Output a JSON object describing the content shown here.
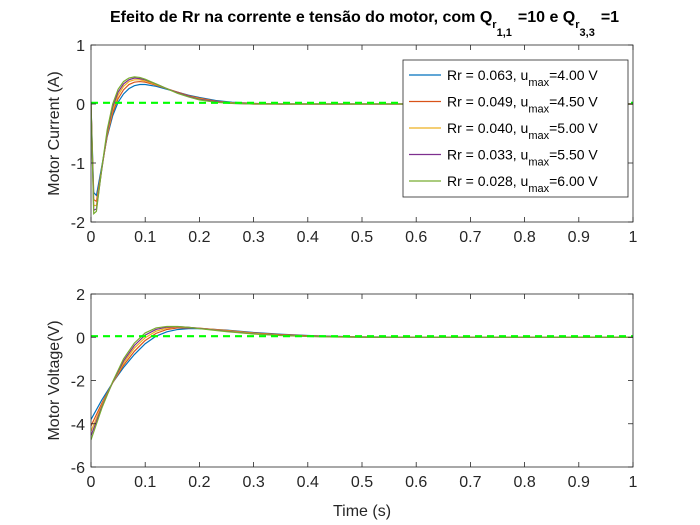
{
  "title": {
    "main": "Efeito de Rr na corrente e tensão do motor, com Q",
    "sub1": "r",
    "subsub1": "1,1",
    "mid": "=10 e Q",
    "sub2": "r",
    "subsub2": "3,3",
    "end": "=1"
  },
  "chart_data": [
    {
      "type": "line",
      "panel": "top",
      "xlabel": "",
      "ylabel": "Motor Current (A)",
      "xlim": [
        0,
        1
      ],
      "ylim": [
        -2,
        1
      ],
      "xticks": [
        "0",
        "0.1",
        "0.2",
        "0.3",
        "0.4",
        "0.5",
        "0.6",
        "0.7",
        "0.8",
        "0.9",
        "1"
      ],
      "yticks": [
        "-2",
        "-1",
        "0",
        "1"
      ],
      "reference_line": {
        "y": 0.02,
        "color": "#00ff00",
        "style": "dashed"
      },
      "legend": {
        "placement": "top-right",
        "entries": [
          {
            "rr": "Rr = 0.063, u",
            "sub": "max",
            "val": "=4.00 V",
            "color": "#0072bd"
          },
          {
            "rr": "Rr = 0.049, u",
            "sub": "max",
            "val": "=4.50 V",
            "color": "#d95319"
          },
          {
            "rr": "Rr = 0.040, u",
            "sub": "max",
            "val": "=5.00 V",
            "color": "#edb120"
          },
          {
            "rr": "Rr = 0.033, u",
            "sub": "max",
            "val": "=5.50 V",
            "color": "#7e2f8e"
          },
          {
            "rr": "Rr = 0.028, u",
            "sub": "max",
            "val": "=6.00 V",
            "color": "#77ac30"
          }
        ]
      },
      "series": [
        {
          "color": "#0072bd",
          "x": [
            0,
            0.005,
            0.01,
            0.02,
            0.03,
            0.04,
            0.05,
            0.06,
            0.07,
            0.08,
            0.09,
            0.1,
            0.12,
            0.14,
            0.16,
            0.18,
            0.2,
            0.23,
            0.26,
            0.3,
            0.35,
            0.4,
            0.5,
            0.6,
            1.0
          ],
          "y": [
            0,
            -1.5,
            -1.55,
            -1.05,
            -0.55,
            -0.2,
            0.03,
            0.17,
            0.26,
            0.31,
            0.33,
            0.33,
            0.3,
            0.25,
            0.2,
            0.15,
            0.11,
            0.06,
            0.03,
            0.01,
            0.0,
            0.0,
            0.0,
            0.0,
            0.0
          ]
        },
        {
          "color": "#d95319",
          "x": [
            0,
            0.005,
            0.01,
            0.02,
            0.03,
            0.04,
            0.05,
            0.06,
            0.07,
            0.08,
            0.09,
            0.1,
            0.12,
            0.14,
            0.16,
            0.18,
            0.2,
            0.23,
            0.26,
            0.3,
            0.35,
            0.4,
            0.5,
            0.6,
            1.0
          ],
          "y": [
            0,
            -1.62,
            -1.65,
            -1.08,
            -0.53,
            -0.15,
            0.09,
            0.24,
            0.33,
            0.37,
            0.38,
            0.37,
            0.32,
            0.26,
            0.2,
            0.14,
            0.1,
            0.05,
            0.02,
            0.01,
            0.0,
            0.0,
            0.0,
            0.0,
            0.0
          ]
        },
        {
          "color": "#edb120",
          "x": [
            0,
            0.005,
            0.01,
            0.02,
            0.03,
            0.04,
            0.05,
            0.06,
            0.07,
            0.08,
            0.09,
            0.1,
            0.12,
            0.14,
            0.16,
            0.18,
            0.2,
            0.23,
            0.26,
            0.3,
            0.35,
            0.4,
            0.5,
            0.6,
            1.0
          ],
          "y": [
            0,
            -1.72,
            -1.72,
            -1.1,
            -0.5,
            -0.1,
            0.15,
            0.3,
            0.38,
            0.41,
            0.41,
            0.39,
            0.33,
            0.26,
            0.19,
            0.13,
            0.09,
            0.04,
            0.02,
            0.0,
            0.0,
            0.0,
            0.0,
            0.0,
            0.0
          ]
        },
        {
          "color": "#7e2f8e",
          "x": [
            0,
            0.005,
            0.01,
            0.02,
            0.03,
            0.04,
            0.05,
            0.06,
            0.07,
            0.08,
            0.09,
            0.1,
            0.12,
            0.14,
            0.16,
            0.18,
            0.2,
            0.23,
            0.26,
            0.3,
            0.35,
            0.4,
            0.5,
            0.6,
            1.0
          ],
          "y": [
            0,
            -1.8,
            -1.78,
            -1.1,
            -0.47,
            -0.05,
            0.2,
            0.34,
            0.41,
            0.44,
            0.43,
            0.41,
            0.34,
            0.26,
            0.19,
            0.13,
            0.08,
            0.04,
            0.01,
            0.0,
            0.0,
            0.0,
            0.0,
            0.0,
            0.0
          ]
        },
        {
          "color": "#77ac30",
          "x": [
            0,
            0.005,
            0.01,
            0.02,
            0.03,
            0.04,
            0.05,
            0.06,
            0.07,
            0.08,
            0.09,
            0.1,
            0.12,
            0.14,
            0.16,
            0.18,
            0.2,
            0.23,
            0.26,
            0.3,
            0.35,
            0.4,
            0.5,
            0.6,
            1.0
          ],
          "y": [
            0,
            -1.86,
            -1.82,
            -1.08,
            -0.43,
            0.0,
            0.25,
            0.38,
            0.44,
            0.46,
            0.45,
            0.42,
            0.34,
            0.26,
            0.18,
            0.12,
            0.07,
            0.03,
            0.01,
            0.0,
            0.0,
            0.0,
            0.0,
            0.0,
            0.0
          ]
        }
      ]
    },
    {
      "type": "line",
      "panel": "bottom",
      "xlabel": "Time (s)",
      "ylabel": "Motor Voltage(V)",
      "xlim": [
        0,
        1
      ],
      "ylim": [
        -6,
        2
      ],
      "xticks": [
        "0",
        "0.1",
        "0.2",
        "0.3",
        "0.4",
        "0.5",
        "0.6",
        "0.7",
        "0.8",
        "0.9",
        "1"
      ],
      "yticks": [
        "-6",
        "-4",
        "-2",
        "0",
        "2"
      ],
      "reference_line": {
        "y": 0.05,
        "color": "#00ff00",
        "style": "dashed"
      },
      "series": [
        {
          "color": "#0072bd",
          "x": [
            0,
            0.02,
            0.04,
            0.06,
            0.08,
            0.1,
            0.12,
            0.14,
            0.16,
            0.18,
            0.2,
            0.25,
            0.3,
            0.35,
            0.4,
            0.45,
            0.5,
            0.6,
            1.0
          ],
          "y": [
            -3.8,
            -2.9,
            -2.1,
            -1.4,
            -0.8,
            -0.3,
            0.05,
            0.25,
            0.36,
            0.4,
            0.4,
            0.33,
            0.22,
            0.14,
            0.08,
            0.04,
            0.02,
            0.0,
            0.0
          ]
        },
        {
          "color": "#d95319",
          "x": [
            0,
            0.02,
            0.04,
            0.06,
            0.08,
            0.1,
            0.12,
            0.14,
            0.16,
            0.18,
            0.2,
            0.25,
            0.3,
            0.35,
            0.4,
            0.45,
            0.5,
            0.6,
            1.0
          ],
          "y": [
            -4.1,
            -3.05,
            -2.1,
            -1.3,
            -0.65,
            -0.15,
            0.18,
            0.36,
            0.43,
            0.44,
            0.42,
            0.32,
            0.2,
            0.12,
            0.07,
            0.03,
            0.01,
            0.0,
            0.0
          ]
        },
        {
          "color": "#edb120",
          "x": [
            0,
            0.02,
            0.04,
            0.06,
            0.08,
            0.1,
            0.12,
            0.14,
            0.16,
            0.18,
            0.2,
            0.25,
            0.3,
            0.35,
            0.4,
            0.45,
            0.5,
            0.6,
            1.0
          ],
          "y": [
            -4.35,
            -3.15,
            -2.1,
            -1.2,
            -0.5,
            -0.02,
            0.28,
            0.42,
            0.47,
            0.46,
            0.42,
            0.3,
            0.18,
            0.1,
            0.05,
            0.02,
            0.01,
            0.0,
            0.0
          ]
        },
        {
          "color": "#7e2f8e",
          "x": [
            0,
            0.02,
            0.04,
            0.06,
            0.08,
            0.1,
            0.12,
            0.14,
            0.16,
            0.18,
            0.2,
            0.25,
            0.3,
            0.35,
            0.4,
            0.45,
            0.5,
            0.6,
            1.0
          ],
          "y": [
            -4.55,
            -3.22,
            -2.08,
            -1.1,
            -0.38,
            0.1,
            0.36,
            0.47,
            0.49,
            0.46,
            0.41,
            0.28,
            0.16,
            0.09,
            0.04,
            0.02,
            0.0,
            0.0,
            0.0
          ]
        },
        {
          "color": "#77ac30",
          "x": [
            0,
            0.02,
            0.04,
            0.06,
            0.08,
            0.1,
            0.12,
            0.14,
            0.16,
            0.18,
            0.2,
            0.25,
            0.3,
            0.35,
            0.4,
            0.45,
            0.5,
            0.6,
            1.0
          ],
          "y": [
            -4.75,
            -3.28,
            -2.05,
            -1.0,
            -0.27,
            0.2,
            0.43,
            0.5,
            0.5,
            0.46,
            0.4,
            0.26,
            0.15,
            0.08,
            0.04,
            0.01,
            0.0,
            0.0,
            0.0
          ]
        }
      ]
    }
  ]
}
